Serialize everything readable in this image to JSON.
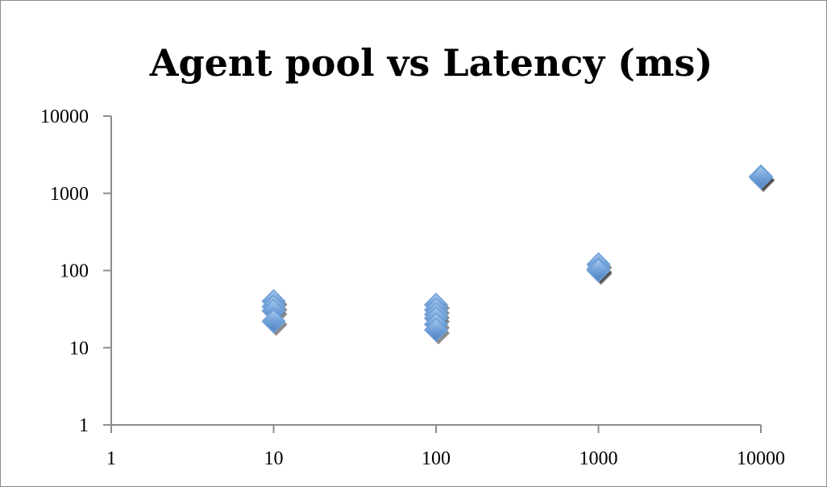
{
  "chart_data": {
    "type": "scatter",
    "title": "Agent pool vs Latency (ms)",
    "xlabel": "",
    "ylabel": "",
    "x_scale": "log",
    "y_scale": "log",
    "xlim": [
      1,
      10000
    ],
    "ylim": [
      1,
      10000
    ],
    "x_ticks": [
      "1",
      "10",
      "100",
      "1000",
      "10000"
    ],
    "y_ticks": [
      "1",
      "10",
      "100",
      "1000",
      "10000"
    ],
    "grid": false,
    "legend": "none",
    "marker": "diamond",
    "marker_color": "#6fa0d8",
    "series": [
      {
        "points": [
          {
            "x": 10,
            "y": 40
          },
          {
            "x": 10,
            "y": 34
          },
          {
            "x": 10,
            "y": 30
          },
          {
            "x": 10,
            "y": 22
          },
          {
            "x": 100,
            "y": 36
          },
          {
            "x": 100,
            "y": 31
          },
          {
            "x": 100,
            "y": 27
          },
          {
            "x": 100,
            "y": 24
          },
          {
            "x": 100,
            "y": 20
          },
          {
            "x": 100,
            "y": 17
          },
          {
            "x": 1000,
            "y": 120
          },
          {
            "x": 1000,
            "y": 105
          },
          {
            "x": 1000,
            "y": 100
          },
          {
            "x": 10000,
            "y": 1650
          },
          {
            "x": 10000,
            "y": 1600
          }
        ]
      }
    ]
  }
}
